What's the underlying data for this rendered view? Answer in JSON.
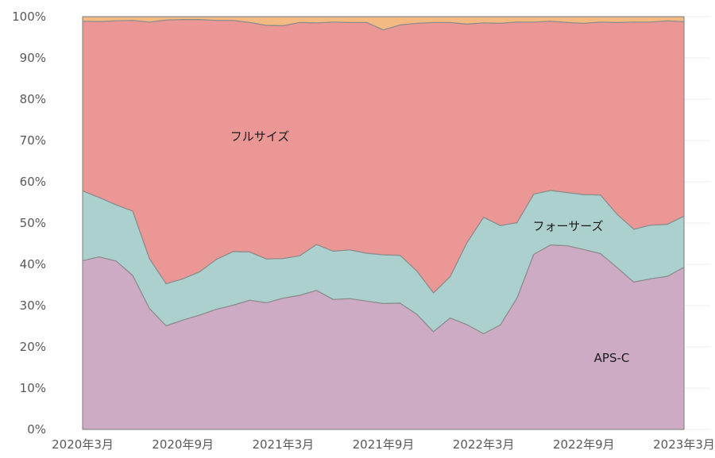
{
  "colors": {
    "aps_c": "#cdabc4",
    "four_thirds": "#acd0ce",
    "full_size": "#eb9796",
    "other": "#f3bb83",
    "outline": "#8c8c8c",
    "tick_text": "#595959",
    "grid": "#eeeeee"
  },
  "chart_data": {
    "type": "area",
    "stacked": true,
    "normalized": true,
    "xlabel": "",
    "ylabel": "",
    "ylim": [
      0,
      100
    ],
    "grid": true,
    "y_ticks": [
      "0%",
      "10%",
      "20%",
      "30%",
      "40%",
      "50%",
      "60%",
      "70%",
      "80%",
      "90%",
      "100%"
    ],
    "x_tick_labels": [
      {
        "label": "2020年3月",
        "index": 0
      },
      {
        "label": "2020年9月",
        "index": 6
      },
      {
        "label": "2021年3月",
        "index": 12
      },
      {
        "label": "2021年9月",
        "index": 18
      },
      {
        "label": "2022年3月",
        "index": 24
      },
      {
        "label": "2022年9月",
        "index": 30
      },
      {
        "label": "2023年3月",
        "index": 36
      }
    ],
    "x": [
      "2020-03",
      "2020-04",
      "2020-05",
      "2020-06",
      "2020-07",
      "2020-08",
      "2020-09",
      "2020-10",
      "2020-11",
      "2020-12",
      "2021-01",
      "2021-02",
      "2021-03",
      "2021-04",
      "2021-05",
      "2021-06",
      "2021-07",
      "2021-08",
      "2021-09",
      "2021-10",
      "2021-11",
      "2021-12",
      "2022-01",
      "2022-02",
      "2022-03",
      "2022-04",
      "2022-05",
      "2022-06",
      "2022-07",
      "2022-08",
      "2022-09",
      "2022-10",
      "2022-11",
      "2022-12",
      "2023-01",
      "2023-02",
      "2023-03"
    ],
    "series": [
      {
        "name": "APS-C",
        "values": [
          40.9,
          41.8,
          40.8,
          37.3,
          29.3,
          25.1,
          26.5,
          27.7,
          29.1,
          30.1,
          31.3,
          30.7,
          31.8,
          32.5,
          33.7,
          31.5,
          31.7,
          31.1,
          30.5,
          30.6,
          27.9,
          23.7,
          27.0,
          25.4,
          23.2,
          25.3,
          31.8,
          42.4,
          44.7,
          44.5,
          43.6,
          42.6,
          39.2,
          35.7,
          36.5,
          37.1,
          39.3
        ]
      },
      {
        "name": "フォーサーズ",
        "values": [
          16.9,
          14.4,
          13.6,
          15.6,
          12.1,
          10.2,
          10.0,
          10.5,
          12.1,
          13.0,
          11.7,
          10.6,
          9.6,
          9.6,
          11.1,
          11.7,
          11.8,
          11.6,
          11.8,
          11.6,
          10.5,
          9.4,
          10.0,
          19.8,
          28.2,
          24.1,
          18.3,
          14.6,
          13.2,
          12.9,
          13.3,
          14.2,
          12.9,
          12.8,
          13.0,
          12.6,
          12.4
        ]
      },
      {
        "name": "フルサイズ",
        "values": [
          41.1,
          42.6,
          44.6,
          46.2,
          57.3,
          63.9,
          62.8,
          61.1,
          57.9,
          56.0,
          55.6,
          56.6,
          56.4,
          56.5,
          53.7,
          55.5,
          55.1,
          55.9,
          54.5,
          55.8,
          60.0,
          65.5,
          61.6,
          53.0,
          47.1,
          49.0,
          48.6,
          41.7,
          41.0,
          41.2,
          41.5,
          41.9,
          46.5,
          50.2,
          49.2,
          49.3,
          47.1
        ]
      },
      {
        "name": "",
        "values": [
          1.1,
          1.2,
          1.0,
          0.9,
          1.3,
          0.8,
          0.7,
          0.7,
          0.9,
          0.9,
          1.4,
          2.1,
          2.2,
          1.4,
          1.5,
          1.3,
          1.4,
          1.4,
          3.2,
          2.0,
          1.6,
          1.4,
          1.4,
          1.8,
          1.5,
          1.6,
          1.3,
          1.3,
          1.1,
          1.4,
          1.6,
          1.3,
          1.4,
          1.3,
          1.3,
          1.0,
          1.2
        ]
      }
    ],
    "annotations": [
      "フルサイズ",
      "フォーサーズ",
      "APS-C"
    ]
  }
}
